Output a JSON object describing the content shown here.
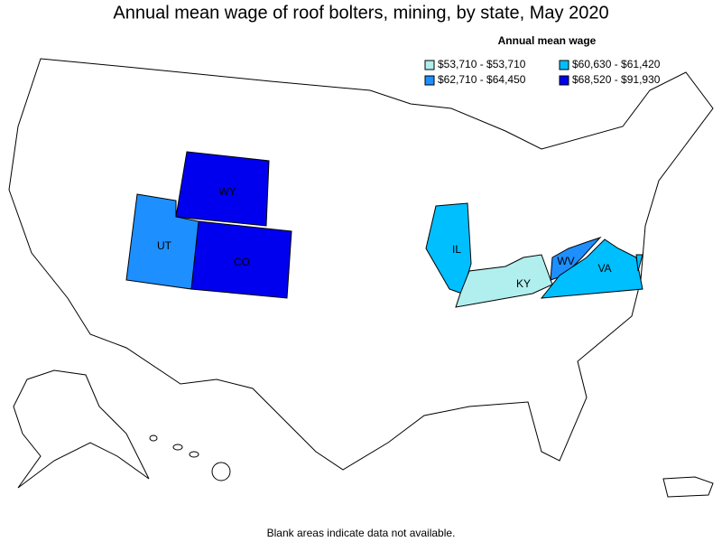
{
  "title": "Annual mean wage of roof bolters, mining, by state, May 2020",
  "legend": {
    "title": "Annual mean wage",
    "items": [
      {
        "label": "$53,710 - $53,710",
        "color": "#b0efee"
      },
      {
        "label": "$60,630 - $61,420",
        "color": "#00bfff"
      },
      {
        "label": "$62,710 - $64,450",
        "color": "#1e8fff"
      },
      {
        "label": "$68,520 - $91,930",
        "color": "#0000ee"
      }
    ]
  },
  "states": [
    {
      "label": "WY",
      "class": 3
    },
    {
      "label": "CO",
      "class": 3
    },
    {
      "label": "UT",
      "class": 2
    },
    {
      "label": "IL",
      "class": 1
    },
    {
      "label": "KY",
      "class": 0
    },
    {
      "label": "WV",
      "class": 2
    },
    {
      "label": "VA",
      "class": 1
    }
  ],
  "footnote": "Blank areas indicate data not available."
}
